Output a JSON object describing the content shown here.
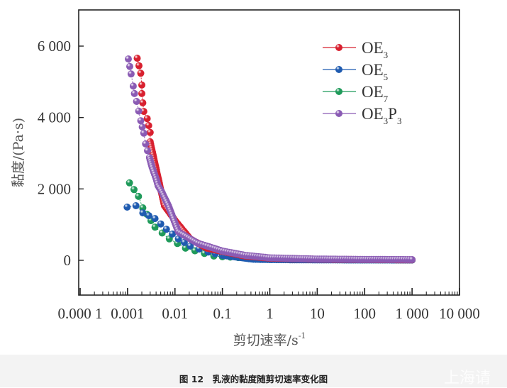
{
  "chart_data": {
    "type": "scatter",
    "title": "",
    "xlabel": "剪切速率/s",
    "xlabel_sup": "-1",
    "ylabel": "黏度/(Pa·s)",
    "xscale": "log",
    "xlim": [
      0.0001,
      10000
    ],
    "ylim": [
      -1000,
      7000
    ],
    "grid": false,
    "legend_position": "top-right",
    "x_ticks": [
      0.0001,
      0.001,
      0.01,
      0.1,
      1,
      10,
      100,
      1000,
      10000
    ],
    "x_tick_labels": [
      "0.000 1",
      "0.001",
      "0.01",
      "0.1",
      "1",
      "10",
      "100",
      "1 000",
      "10 000"
    ],
    "y_ticks": [
      0,
      2000,
      4000,
      6000
    ],
    "y_tick_labels": [
      "0",
      "2 000",
      "4 000",
      "6 000"
    ],
    "series": [
      {
        "name": "OE3",
        "label_main": "OE",
        "label_sub1": "3",
        "label_mid": "",
        "label_sub2": "",
        "color": "#d8202f",
        "points": [
          [
            0.0016,
            5660
          ],
          [
            0.0019,
            5240
          ],
          [
            0.002,
            4910
          ],
          [
            0.002,
            4670
          ],
          [
            0.0021,
            4410
          ],
          [
            0.0022,
            4170
          ],
          [
            0.0026,
            3970
          ],
          [
            0.003,
            3580
          ],
          [
            0.003,
            3320
          ],
          [
            0.0054,
            1790
          ],
          [
            0.006,
            1530
          ],
          [
            0.0107,
            1070
          ],
          [
            0.021,
            600
          ],
          [
            0.047,
            340
          ],
          [
            0.1,
            250
          ],
          [
            0.3,
            120
          ],
          [
            1,
            60
          ],
          [
            10,
            30
          ],
          [
            100,
            20
          ],
          [
            1000,
            15
          ]
        ]
      },
      {
        "name": "OE5",
        "label_main": "OE",
        "label_sub1": "5",
        "label_mid": "",
        "label_sub2": "",
        "color": "#1f5bb0",
        "points": [
          [
            0.00098,
            1490
          ],
          [
            0.0015,
            1530
          ],
          [
            0.0021,
            1330
          ],
          [
            0.0038,
            1170
          ],
          [
            0.0066,
            870
          ],
          [
            0.0118,
            600
          ],
          [
            0.021,
            400
          ],
          [
            0.05,
            230
          ],
          [
            0.1,
            140
          ],
          [
            0.45,
            30
          ],
          [
            1,
            20
          ],
          [
            10,
            12
          ],
          [
            100,
            10
          ],
          [
            1000,
            8
          ]
        ]
      },
      {
        "name": "OE7",
        "label_main": "OE",
        "label_sub1": "7",
        "label_mid": "",
        "label_sub2": "",
        "color": "#1f9a5a",
        "points": [
          [
            0.0011,
            2170
          ],
          [
            0.0017,
            1790
          ],
          [
            0.0021,
            1470
          ],
          [
            0.0038,
            930
          ],
          [
            0.0076,
            600
          ],
          [
            0.0167,
            340
          ],
          [
            0.066,
            120
          ],
          [
            0.1,
            100
          ],
          [
            1,
            35
          ],
          [
            10,
            20
          ],
          [
            100,
            12
          ],
          [
            1000,
            10
          ]
        ]
      },
      {
        "name": "OE3P3",
        "label_main": "OE",
        "label_sub1": "3",
        "label_mid": "P",
        "label_sub2": "3",
        "color": "#8a5bb4",
        "points": [
          [
            0.00104,
            5640
          ],
          [
            0.00119,
            5220
          ],
          [
            0.00132,
            4880
          ],
          [
            0.0014,
            4670
          ],
          [
            0.00155,
            4450
          ],
          [
            0.0019,
            3910
          ],
          [
            0.0022,
            3560
          ],
          [
            0.0024,
            3260
          ],
          [
            0.0029,
            2880
          ],
          [
            0.0033,
            2600
          ],
          [
            0.004,
            2290
          ],
          [
            0.0044,
            2090
          ],
          [
            0.0052,
            1930
          ],
          [
            0.0073,
            1530
          ],
          [
            0.0118,
            795
          ],
          [
            0.03,
            480
          ],
          [
            0.066,
            338
          ],
          [
            0.1,
            260
          ],
          [
            0.3,
            140
          ],
          [
            1,
            70
          ],
          [
            10,
            35
          ],
          [
            100,
            25
          ],
          [
            1000,
            20
          ]
        ]
      }
    ]
  },
  "caption": "图 12　乳液的黏度随剪切速率变化图",
  "watermark": "上海请"
}
